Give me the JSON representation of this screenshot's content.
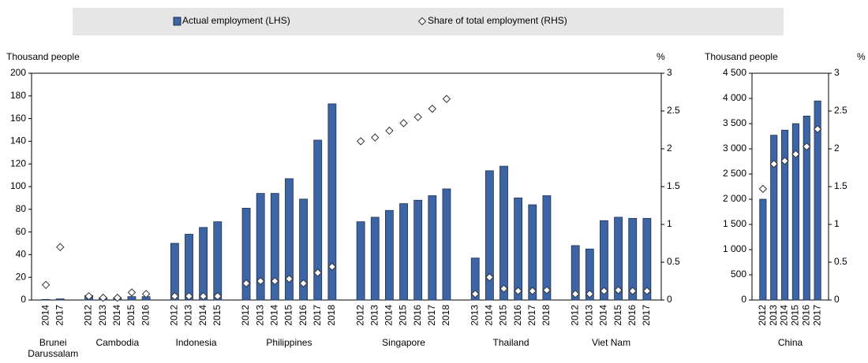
{
  "chart_data": [
    {
      "type": "bar",
      "ylabel": "Thousand people",
      "y2label": "%",
      "legend": "top",
      "groups": [
        {
          "name": "Brunei Darussalam",
          "categories": [
            "2014",
            "2017"
          ]
        },
        {
          "name": "Cambodia",
          "categories": [
            "2012",
            "2013",
            "2014",
            "2015",
            "2016"
          ]
        },
        {
          "name": "Indonesia",
          "categories": [
            "2012",
            "2013",
            "2014",
            "2015"
          ]
        },
        {
          "name": "Philippines",
          "categories": [
            "2012",
            "2013",
            "2014",
            "2015",
            "2016",
            "2017",
            "2018"
          ]
        },
        {
          "name": "Singapore",
          "categories": [
            "2012",
            "2013",
            "2014",
            "2015",
            "2016",
            "2017",
            "2018"
          ]
        },
        {
          "name": "Thailand",
          "categories": [
            "2013",
            "2014",
            "2015",
            "2016",
            "2017",
            "2018"
          ]
        },
        {
          "name": "Viet Nam",
          "categories": [
            "2012",
            "2013",
            "2014",
            "2015",
            "2016",
            "2017"
          ]
        }
      ],
      "series": [
        {
          "name": "Actual employment (LHS)",
          "type": "bar",
          "color": "#3d65a5",
          "values": [
            0.5,
            1,
            4,
            2,
            2,
            3,
            3,
            50,
            58,
            64,
            69,
            81,
            94,
            94,
            107,
            89,
            141,
            173,
            69,
            73,
            79,
            85,
            88,
            92,
            98,
            37,
            114,
            118,
            90,
            84,
            92,
            48,
            45,
            70,
            73,
            72,
            72
          ]
        },
        {
          "name": "Share of total employment (RHS)",
          "type": "scatter",
          "marker": "diamond",
          "color": "#ffffff",
          "axis": "y2",
          "values": [
            0.2,
            0.7,
            0.05,
            0.03,
            0.03,
            0.1,
            0.08,
            0.05,
            0.05,
            0.05,
            0.05,
            0.22,
            0.25,
            0.25,
            0.28,
            0.22,
            0.36,
            0.44,
            2.1,
            2.15,
            2.24,
            2.34,
            2.42,
            2.53,
            2.66,
            0.08,
            0.3,
            0.15,
            0.12,
            0.12,
            0.13,
            0.08,
            0.08,
            0.12,
            0.13,
            0.12,
            0.12
          ]
        }
      ],
      "ylim": [
        0,
        200
      ],
      "yticks": [
        0,
        20,
        40,
        60,
        80,
        100,
        120,
        140,
        160,
        180,
        200
      ],
      "y2lim": [
        0,
        3
      ],
      "y2ticks": [
        0,
        0.5,
        1,
        1.5,
        2,
        2.5,
        3
      ],
      "grid": false
    },
    {
      "type": "bar",
      "ylabel": "Thousand people",
      "y2label": "%",
      "groups": [
        {
          "name": "China",
          "categories": [
            "2012",
            "2013",
            "2014",
            "2015",
            "2016",
            "2017"
          ]
        }
      ],
      "series": [
        {
          "type": "bar",
          "color": "#3d65a5",
          "values": [
            2000,
            3270,
            3370,
            3500,
            3650,
            3950
          ]
        },
        {
          "type": "scatter",
          "marker": "diamond",
          "color": "#ffffff",
          "axis": "y2",
          "values": [
            1.47,
            1.8,
            1.84,
            1.93,
            2.03,
            2.26
          ]
        }
      ],
      "ylim": [
        0,
        4500
      ],
      "yticks": [
        0,
        500,
        {
          "value": 1000,
          "label": "1 000"
        },
        {
          "value": 1500,
          "label": "1 500"
        },
        {
          "value": 2000,
          "label": "2 000"
        },
        {
          "value": 2500,
          "label": "2 500"
        },
        {
          "value": 3000,
          "label": "3 000"
        },
        {
          "value": 3500,
          "label": "3 500"
        },
        {
          "value": 4000,
          "label": "4 000"
        },
        {
          "value": 4500,
          "label": "4 500"
        }
      ],
      "y2lim": [
        0,
        3
      ],
      "y2ticks": [
        0,
        0.5,
        1,
        1.5,
        2,
        2.5,
        3
      ],
      "grid": false
    }
  ]
}
